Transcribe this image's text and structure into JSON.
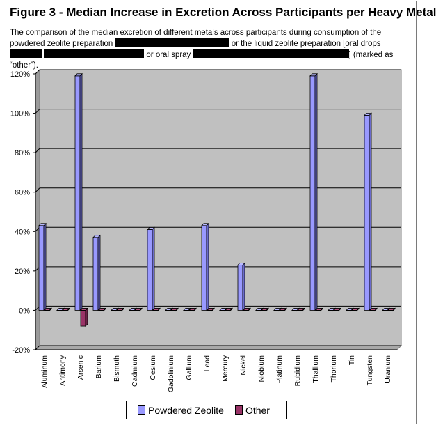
{
  "figure": {
    "title": "Figure 3 - Median Increase in Excretion Across Participants per Heavy Metal",
    "caption_parts": [
      "The comparison of the median excretion of different metals across participants during consumption of the powdered zeolite preparation ",
      " or the liquid zeolite preparation [oral drops",
      " or oral spray ",
      "] (marked as “other”)."
    ]
  },
  "colors": {
    "powdered_zeolite": "#9999ff",
    "other": "#993366",
    "plot_background": "#c0c0c0",
    "gridline": "#000000"
  },
  "chart_data": {
    "type": "bar",
    "categories": [
      "Aluminum",
      "Antimony",
      "Arsenic",
      "Barium",
      "Bismuth",
      "Cadmium",
      "Cesium",
      "Gadolinium",
      "Gallium",
      "Lead",
      "Mercury",
      "Nickel",
      "Niobium",
      "Platinum",
      "Rubidium",
      "Thallium",
      "Thorium",
      "Tin",
      "Tungsten",
      "Uranium"
    ],
    "series": [
      {
        "name": "Powdered Zeolite",
        "values": [
          43,
          0,
          119,
          37,
          0,
          0,
          41,
          0,
          0,
          43,
          0,
          23,
          0,
          0,
          0,
          119,
          0,
          0,
          99,
          0
        ]
      },
      {
        "name": "Other",
        "values": [
          0,
          0,
          -8,
          0,
          0,
          0,
          0,
          0,
          0,
          0,
          0,
          0,
          0,
          0,
          0,
          0,
          0,
          0,
          0,
          0
        ]
      }
    ],
    "yticks": [
      "-20%",
      "0%",
      "20%",
      "40%",
      "60%",
      "80%",
      "100%",
      "120%"
    ],
    "ylim": [
      -20,
      120
    ],
    "ytick_step": 20,
    "grid": true,
    "style": "3d",
    "legend_position": "bottom"
  }
}
